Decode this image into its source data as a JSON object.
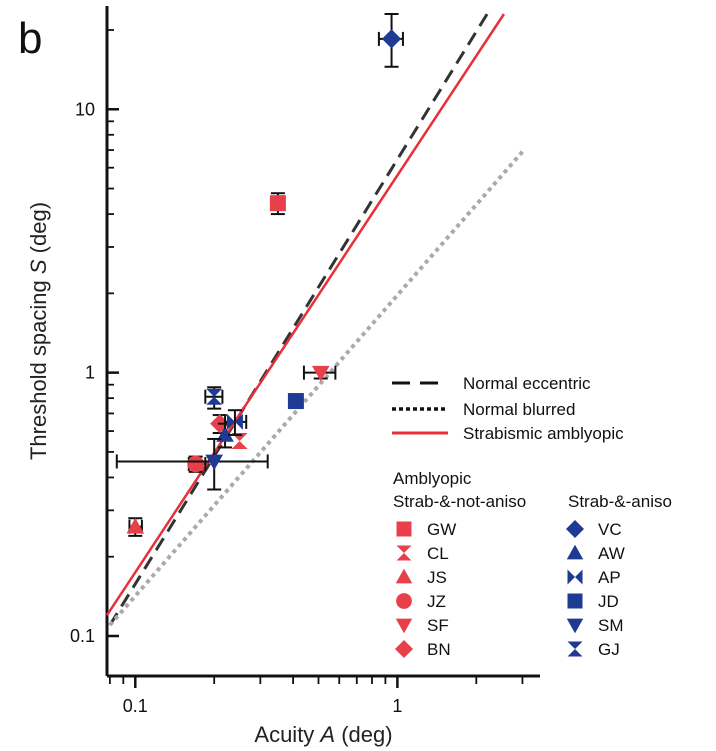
{
  "panel_label": "b",
  "chart_data": {
    "type": "scatter",
    "xscale": "log",
    "yscale": "log",
    "xlim": [
      0.078,
      3.5
    ],
    "ylim": [
      0.1,
      23
    ],
    "xlabel_prefix": "Acuity ",
    "xlabel_var": "A",
    "xlabel_suffix": " (deg)",
    "ylabel_prefix": "Threshold spacing ",
    "ylabel_var": "S",
    "ylabel_suffix": " (deg)",
    "xticks_major": [
      {
        "value": 0.1,
        "label": "0.1"
      },
      {
        "value": 1,
        "label": "1"
      }
    ],
    "yticks_major": [
      {
        "value": 0.1,
        "label": "0.1"
      },
      {
        "value": 1,
        "label": "1"
      },
      {
        "value": 10,
        "label": "10"
      }
    ],
    "lines": [
      {
        "name": "Normal eccentric",
        "style": "dashed",
        "color": "#333333",
        "x": [
          0.08,
          2.2
        ],
        "y": [
          0.11,
          23
        ]
      },
      {
        "name": "Normal blurred",
        "style": "dotted",
        "color": "#aaaaaa",
        "x": [
          0.08,
          3.0
        ],
        "y": [
          0.11,
          6.9
        ]
      },
      {
        "name": "Strabismic  amblyopic",
        "style": "solid",
        "color": "#e8303a",
        "x": [
          0.078,
          2.55
        ],
        "y": [
          0.12,
          23
        ]
      }
    ],
    "legend_title": "Amblyopic",
    "group_titles": [
      "Strab-&-not-aniso",
      "Strab-&-aniso"
    ],
    "series": [
      {
        "name": "GW",
        "group": 0,
        "color": "#e8404a",
        "marker": "square",
        "points": [
          {
            "x": 0.35,
            "y": 4.4,
            "xerr": [
              0.33,
              0.37
            ],
            "yerr": [
              4.0,
              4.8
            ]
          }
        ]
      },
      {
        "name": "CL",
        "group": 0,
        "color": "#e8404a",
        "marker": "hourglass",
        "points": [
          {
            "x": 0.25,
            "y": 0.55
          }
        ]
      },
      {
        "name": "JS",
        "group": 0,
        "color": "#e8404a",
        "marker": "triangle-up",
        "points": [
          {
            "x": 0.1,
            "y": 0.26,
            "xerr": [
              0.095,
              0.106
            ],
            "yerr": [
              0.24,
              0.28
            ]
          }
        ]
      },
      {
        "name": "JZ",
        "group": 0,
        "color": "#e8404a",
        "marker": "circle",
        "points": [
          {
            "x": 0.17,
            "y": 0.45,
            "xerr": [
              0.16,
              0.185
            ],
            "yerr": [
              0.42,
              0.48
            ]
          }
        ]
      },
      {
        "name": "SF",
        "group": 0,
        "color": "#e8404a",
        "marker": "triangle-down",
        "points": [
          {
            "x": 0.51,
            "y": 1.0,
            "xerr": [
              0.44,
              0.58
            ],
            "yerr": [
              0.95,
              1.05
            ]
          }
        ]
      },
      {
        "name": "BN",
        "group": 0,
        "color": "#e8404a",
        "marker": "diamond",
        "points": [
          {
            "x": 0.21,
            "y": 0.64,
            "yerr": [
              0.59,
              0.69
            ]
          }
        ]
      },
      {
        "name": "VC",
        "group": 1,
        "color": "#1f3a93",
        "marker": "diamond",
        "points": [
          {
            "x": 0.95,
            "y": 18.5,
            "xerr": [
              0.85,
              1.05
            ],
            "yerr": [
              14.5,
              23.0
            ]
          }
        ]
      },
      {
        "name": "AW",
        "group": 1,
        "color": "#1f3a93",
        "marker": "triangle-up",
        "points": [
          {
            "x": 0.22,
            "y": 0.58,
            "yerr": [
              0.52,
              0.64
            ]
          }
        ]
      },
      {
        "name": "AP",
        "group": 1,
        "color": "#1f3a93",
        "marker": "bowtie",
        "points": [
          {
            "x": 0.24,
            "y": 0.65,
            "xerr": [
              0.22,
              0.265
            ],
            "yerr": [
              0.58,
              0.72
            ]
          }
        ]
      },
      {
        "name": "JD",
        "group": 1,
        "color": "#1f3a93",
        "marker": "square",
        "points": [
          {
            "x": 0.41,
            "y": 0.78
          }
        ]
      },
      {
        "name": "SM",
        "group": 1,
        "color": "#1f3a93",
        "marker": "triangle-down",
        "points": [
          {
            "x": 0.2,
            "y": 0.46,
            "xerr": [
              0.085,
              0.32
            ],
            "yerr": [
              0.36,
              0.56
            ]
          }
        ]
      },
      {
        "name": "GJ",
        "group": 1,
        "color": "#1f3a93",
        "marker": "hourglass",
        "points": [
          {
            "x": 0.2,
            "y": 0.81,
            "xerr": [
              0.185,
              0.215
            ],
            "yerr": [
              0.73,
              0.88
            ]
          }
        ]
      }
    ]
  }
}
